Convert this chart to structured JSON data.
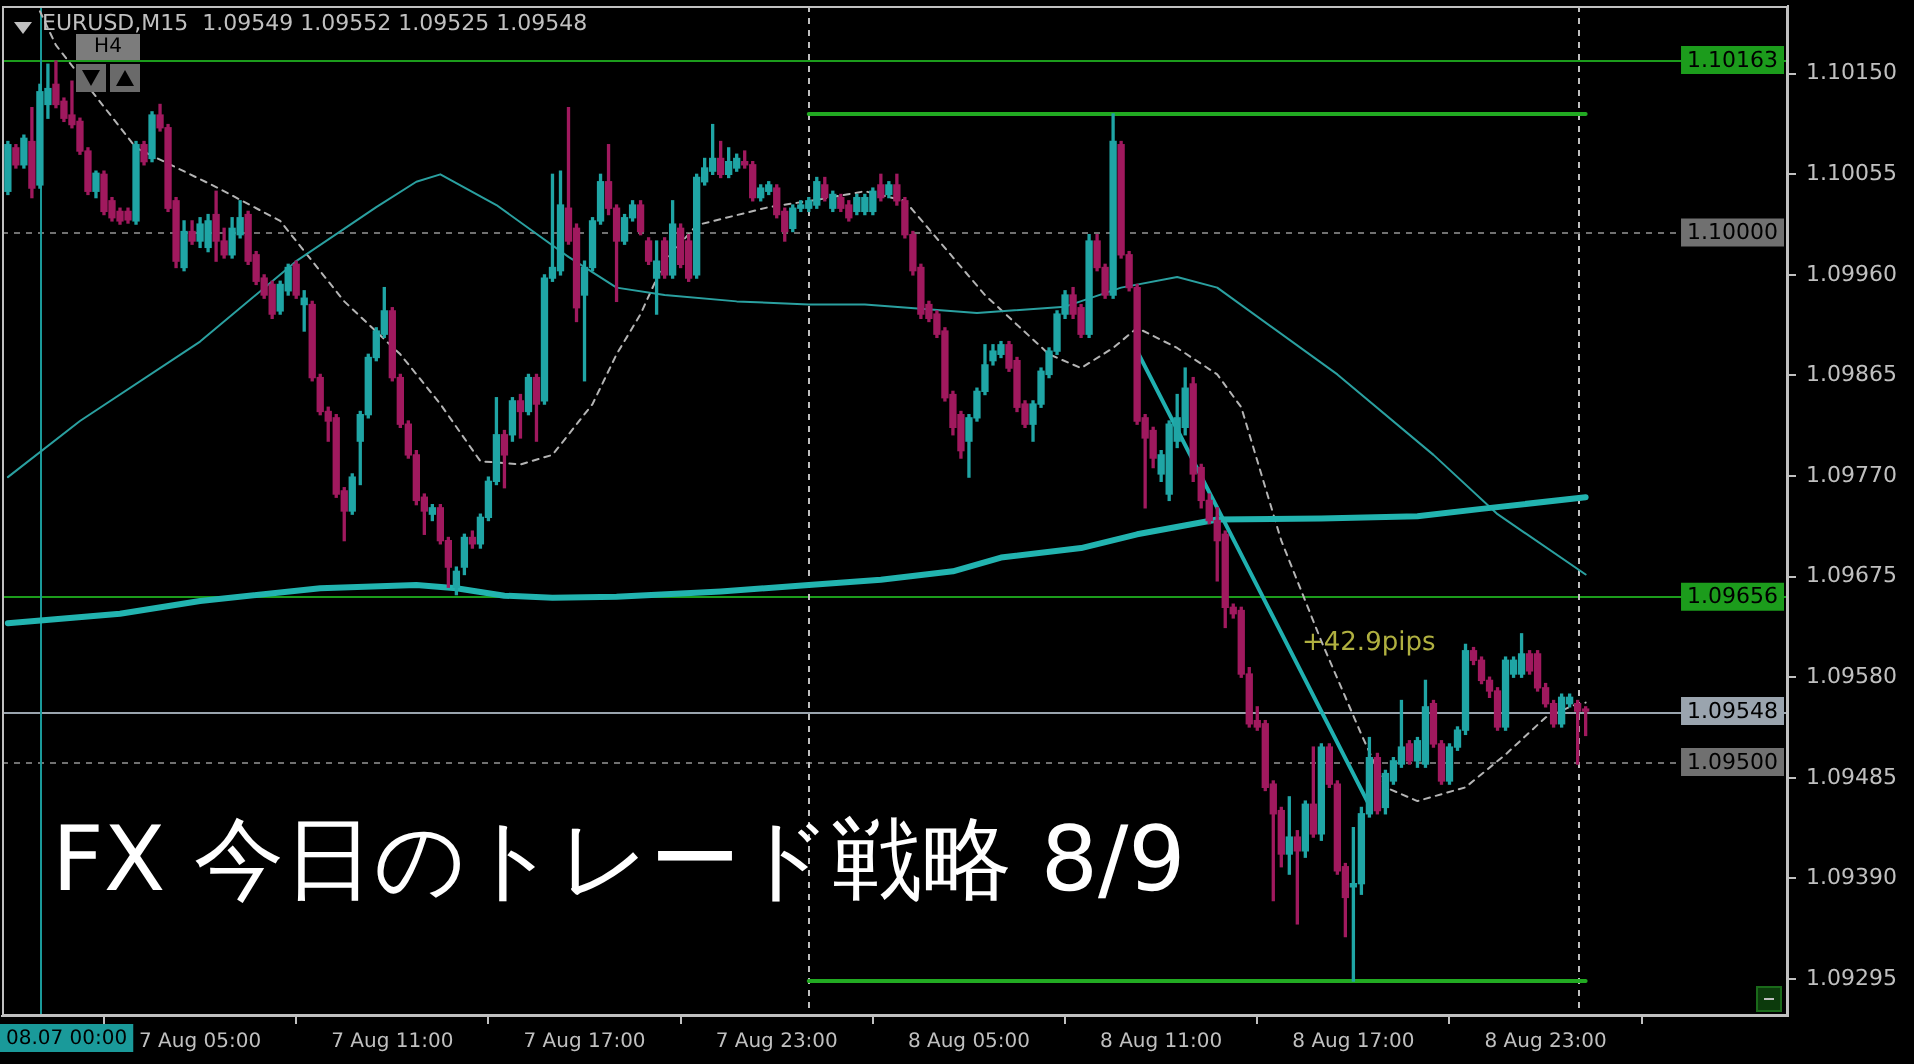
{
  "chart_data": {
    "type": "candlestick",
    "title": "FX 今日のトレード戦略 8/9",
    "subtitle": "EURUSD,M15  1.09549 1.09552 1.09525 1.09548",
    "x": [
      "--08-06T23:00",
      "--08-06T23:15",
      "--08-06T23:30",
      "--08-06T23:45",
      "--08-07T00:00",
      "--08-07T00:15",
      "--08-07T00:30",
      "--08-07T00:45",
      "--08-07T01:00",
      "--08-07T01:15",
      "--08-07T01:30",
      "--08-07T01:45",
      "--08-07T02:00",
      "--08-07T02:15",
      "--08-07T02:30",
      "--08-07T02:45",
      "--08-07T03:00",
      "--08-07T03:15",
      "--08-07T03:30",
      "--08-07T03:45",
      "--08-07T04:00",
      "--08-07T04:15",
      "--08-07T04:30",
      "--08-07T04:45",
      "--08-07T05:00",
      "--08-07T05:15",
      "--08-07T05:30",
      "--08-07T05:45",
      "--08-07T06:00",
      "--08-07T06:15",
      "--08-07T06:30",
      "--08-07T06:45",
      "--08-07T07:00",
      "--08-07T07:15",
      "--08-07T07:30",
      "--08-07T07:45",
      "--08-07T08:00",
      "--08-07T08:15",
      "--08-07T08:30",
      "--08-07T08:45",
      "--08-07T09:00",
      "--08-07T09:15",
      "--08-07T09:30",
      "--08-07T09:45",
      "--08-07T10:00",
      "--08-07T10:15",
      "--08-07T10:30",
      "--08-07T10:45",
      "--08-07T11:00",
      "--08-07T11:15",
      "--08-07T11:30",
      "--08-07T11:45",
      "--08-07T12:00",
      "--08-07T12:15",
      "--08-07T12:30",
      "--08-07T12:45",
      "--08-07T13:00",
      "--08-07T13:15",
      "--08-07T13:30",
      "--08-07T13:45",
      "--08-07T14:00",
      "--08-07T14:15",
      "--08-07T14:30",
      "--08-07T14:45",
      "--08-07T15:00",
      "--08-07T15:15",
      "--08-07T15:30",
      "--08-07T15:45",
      "--08-07T16:00",
      "--08-07T16:15",
      "--08-07T16:30",
      "--08-07T16:45",
      "--08-07T17:00",
      "--08-07T17:15",
      "--08-07T17:30",
      "--08-07T17:45",
      "--08-07T18:00",
      "--08-07T18:15",
      "--08-07T18:30",
      "--08-07T18:45",
      "--08-07T19:00",
      "--08-07T19:15",
      "--08-07T19:30",
      "--08-07T19:45",
      "--08-07T20:00",
      "--08-07T20:15",
      "--08-07T20:30",
      "--08-07T20:45",
      "--08-07T21:00",
      "--08-07T21:15",
      "--08-07T21:30",
      "--08-07T21:45",
      "--08-07T22:00",
      "--08-07T22:15",
      "--08-07T22:30",
      "--08-07T22:45",
      "--08-07T23:00",
      "--08-07T23:15",
      "--08-07T23:30",
      "--08-07T23:45",
      "--08-08T00:00",
      "--08-08T00:15",
      "--08-08T00:30",
      "--08-08T00:45",
      "--08-08T01:00",
      "--08-08T01:15",
      "--08-08T01:30",
      "--08-08T01:45",
      "--08-08T02:00",
      "--08-08T02:15",
      "--08-08T02:30",
      "--08-08T02:45",
      "--08-08T03:00",
      "--08-08T03:15",
      "--08-08T03:30",
      "--08-08T03:45",
      "--08-08T04:00",
      "--08-08T04:15",
      "--08-08T04:30",
      "--08-08T04:45",
      "--08-08T05:00",
      "--08-08T05:15",
      "--08-08T05:30",
      "--08-08T05:45",
      "--08-08T06:00",
      "--08-08T06:15",
      "--08-08T06:30",
      "--08-08T06:45",
      "--08-08T07:00",
      "--08-08T07:15",
      "--08-08T07:30",
      "--08-08T07:45",
      "--08-08T08:00",
      "--08-08T08:15",
      "--08-08T08:30",
      "--08-08T08:45",
      "--08-08T09:00",
      "--08-08T09:15",
      "--08-08T09:30",
      "--08-08T09:45",
      "--08-08T10:00",
      "--08-08T10:15",
      "--08-08T10:30",
      "--08-08T10:45",
      "--08-08T11:00",
      "--08-08T11:15",
      "--08-08T11:30",
      "--08-08T11:45",
      "--08-08T12:00",
      "--08-08T12:15",
      "--08-08T12:30",
      "--08-08T12:45",
      "--08-08T13:00",
      "--08-08T13:15",
      "--08-08T13:30",
      "--08-08T13:45",
      "--08-08T14:00",
      "--08-08T14:15",
      "--08-08T14:30",
      "--08-08T14:45",
      "--08-08T15:00",
      "--08-08T15:15",
      "--08-08T15:30",
      "--08-08T15:45",
      "--08-08T16:00",
      "--08-08T16:15",
      "--08-08T16:30",
      "--08-08T16:45",
      "--08-08T17:00",
      "--08-08T17:15",
      "--08-08T17:30",
      "--08-08T17:45",
      "--08-08T18:00",
      "--08-08T18:15",
      "--08-08T18:30",
      "--08-08T18:45",
      "--08-08T19:00",
      "--08-08T19:15",
      "--08-08T19:30",
      "--08-08T19:45",
      "--08-08T20:00",
      "--08-08T20:15",
      "--08-08T20:30",
      "--08-08T20:45",
      "--08-08T21:00",
      "--08-08T21:15",
      "--08-08T21:30",
      "--08-08T21:45",
      "--08-08T22:00",
      "--08-08T22:15",
      "--08-08T22:30",
      "--08-08T22:45",
      "--08-08T23:00",
      "--08-08T23:15",
      "--08-08T23:30",
      "--08-08T23:45",
      "--08-09T00:00",
      "--08-09T00:15"
    ],
    "ohlc": [
      [
        1.10039,
        1.10086,
        1.10036,
        1.10083
      ],
      [
        1.1008,
        1.10083,
        1.10061,
        1.10064
      ],
      [
        1.10064,
        1.10092,
        1.10061,
        1.10089
      ],
      [
        1.10086,
        1.10118,
        1.10033,
        1.10042
      ],
      [
        1.10045,
        1.1014,
        1.10042,
        1.10133
      ],
      [
        1.10121,
        1.10159,
        1.10108,
        1.10136
      ],
      [
        1.1014,
        1.10162,
        1.10118,
        1.10121
      ],
      [
        1.10124,
        1.10127,
        1.10105,
        1.10108
      ],
      [
        1.10111,
        1.10143,
        1.10099,
        1.10102
      ],
      [
        1.10105,
        1.10108,
        1.10074,
        1.10077
      ],
      [
        1.10077,
        1.1008,
        1.10036,
        1.10039
      ],
      [
        1.10039,
        1.10058,
        1.10033,
        1.10056
      ],
      [
        1.10055,
        1.10058,
        1.10017,
        1.1002
      ],
      [
        1.1003,
        1.10033,
        1.10011,
        1.10014
      ],
      [
        1.1002,
        1.10023,
        1.10008,
        1.10011
      ],
      [
        1.1002,
        1.10023,
        1.10009,
        1.10012
      ],
      [
        1.10011,
        1.10086,
        1.10008,
        1.10083
      ],
      [
        1.10083,
        1.10086,
        1.10064,
        1.10067
      ],
      [
        1.1007,
        1.10114,
        1.10067,
        1.10111
      ],
      [
        1.10111,
        1.10121,
        1.10096,
        1.10099
      ],
      [
        1.10099,
        1.10102,
        1.1002,
        1.10023
      ],
      [
        1.1003,
        1.10033,
        1.09967,
        1.09973
      ],
      [
        1.09967,
        1.10011,
        1.09964,
        1.10001
      ],
      [
        1.10001,
        1.10011,
        1.09989,
        1.09992
      ],
      [
        1.09992,
        1.10014,
        1.09986,
        1.10008
      ],
      [
        1.09986,
        1.10017,
        1.09982,
        1.10011
      ],
      [
        1.10017,
        1.10039,
        1.09973,
        1.09992
      ],
      [
        1.09992,
        1.10004,
        1.09976,
        1.09979
      ],
      [
        1.09979,
        1.10014,
        1.09976,
        1.10004
      ],
      [
        1.09998,
        1.1003,
        1.09995,
        1.10014
      ],
      [
        1.10017,
        1.1002,
        1.0997,
        1.09973
      ],
      [
        1.09979,
        1.09982,
        1.09951,
        1.09954
      ],
      [
        1.09957,
        1.0996,
        1.09938,
        1.09941
      ],
      [
        1.09951,
        1.09954,
        1.09919,
        1.09923
      ],
      [
        1.09926,
        1.09954,
        1.09923,
        1.09951
      ],
      [
        1.09945,
        1.0997,
        1.09941,
        1.09967
      ],
      [
        1.0997,
        1.09973,
        1.09938,
        1.09941
      ],
      [
        1.09932,
        1.09945,
        1.09907,
        1.09938
      ],
      [
        1.09932,
        1.09935,
        1.0986,
        1.09863
      ],
      [
        1.09863,
        1.09866,
        1.09828,
        1.09831
      ],
      [
        1.09831,
        1.09835,
        1.09803,
        1.09822
      ],
      [
        1.09825,
        1.09828,
        1.0975,
        1.09753
      ],
      [
        1.09756,
        1.09759,
        1.09709,
        1.09737
      ],
      [
        1.09737,
        1.09772,
        1.09734,
        1.09769
      ],
      [
        1.09803,
        1.09831,
        1.09762,
        1.09828
      ],
      [
        1.09828,
        1.09885,
        1.09825,
        1.09882
      ],
      [
        1.09882,
        1.0991,
        1.09879,
        1.09907
      ],
      [
        1.09904,
        1.09948,
        1.09901,
        1.09926
      ],
      [
        1.09926,
        1.09929,
        1.0986,
        1.09863
      ],
      [
        1.09863,
        1.09866,
        1.09816,
        1.09819
      ],
      [
        1.09819,
        1.09822,
        1.09787,
        1.0979
      ],
      [
        1.0979,
        1.09794,
        1.09743,
        1.09747
      ],
      [
        1.0975,
        1.09753,
        1.09715,
        1.09737
      ],
      [
        1.09734,
        1.09743,
        1.09728,
        1.0974
      ],
      [
        1.0974,
        1.09743,
        1.09706,
        1.09709
      ],
      [
        1.09709,
        1.09712,
        1.09665,
        1.09684
      ],
      [
        1.09665,
        1.09684,
        1.09658,
        1.0968
      ],
      [
        1.09684,
        1.09715,
        1.09677,
        1.09712
      ],
      [
        1.09712,
        1.09718,
        1.09702,
        1.09706
      ],
      [
        1.09706,
        1.09734,
        1.09702,
        1.09731
      ],
      [
        1.09731,
        1.09769,
        1.09728,
        1.09765
      ],
      [
        1.09765,
        1.09844,
        1.09762,
        1.09809
      ],
      [
        1.09809,
        1.09813,
        1.09759,
        1.0979
      ],
      [
        1.09809,
        1.09844,
        1.09803,
        1.09841
      ],
      [
        1.09841,
        1.09847,
        1.09806,
        1.09831
      ],
      [
        1.09831,
        1.09866,
        1.09828,
        1.09863
      ],
      [
        1.09863,
        1.09866,
        1.09803,
        1.09838
      ],
      [
        1.09841,
        1.0996,
        1.09838,
        1.09957
      ],
      [
        1.09957,
        1.10055,
        1.09954,
        1.09967
      ],
      [
        1.09964,
        1.10058,
        1.0996,
        1.10026
      ],
      [
        1.10023,
        1.10118,
        1.09989,
        1.09992
      ],
      [
        1.10004,
        1.10008,
        1.09916,
        1.09929
      ],
      [
        1.09941,
        1.09973,
        1.0986,
        1.09967
      ],
      [
        1.09967,
        1.10014,
        1.09964,
        1.10011
      ],
      [
        1.10011,
        1.10055,
        1.10008,
        1.10048
      ],
      [
        1.10048,
        1.10083,
        1.10017,
        1.10023
      ],
      [
        1.10023,
        1.10026,
        1.09935,
        1.09992
      ],
      [
        1.09992,
        1.10017,
        1.09989,
        1.10014
      ],
      [
        1.10014,
        1.1003,
        1.10011,
        1.10026
      ],
      [
        1.10026,
        1.1003,
        1.09998,
        1.10001
      ],
      [
        1.09992,
        1.09995,
        1.0997,
        1.09973
      ],
      [
        1.09957,
        1.09992,
        1.09923,
        1.09973
      ],
      [
        1.09992,
        1.09995,
        1.09957,
        1.0996
      ],
      [
        1.0996,
        1.1003,
        1.09957,
        1.10008
      ],
      [
        1.10004,
        1.10008,
        1.09967,
        1.0997
      ],
      [
        1.09992,
        1.09998,
        1.09954,
        1.09957
      ],
      [
        1.0996,
        1.10055,
        1.09957,
        1.10052
      ],
      [
        1.10048,
        1.1007,
        1.10045,
        1.10061
      ],
      [
        1.10058,
        1.10102,
        1.10055,
        1.1007
      ],
      [
        1.1007,
        1.10086,
        1.10052,
        1.10055
      ],
      [
        1.10055,
        1.1008,
        1.10052,
        1.10067
      ],
      [
        1.10061,
        1.10074,
        1.10058,
        1.1007
      ],
      [
        1.10067,
        1.10077,
        1.10061,
        1.10064
      ],
      [
        1.10064,
        1.10067,
        1.1003,
        1.10033
      ],
      [
        1.10033,
        1.10045,
        1.1003,
        1.10042
      ],
      [
        1.10039,
        1.10048,
        1.10036,
        1.10045
      ],
      [
        1.10042,
        1.10045,
        1.10014,
        1.10017
      ],
      [
        1.1002,
        1.10023,
        1.09992,
        1.10001
      ],
      [
        1.10004,
        1.10026,
        1.10001,
        1.10023
      ],
      [
        1.10023,
        1.1003,
        1.1002,
        1.10026
      ],
      [
        1.10023,
        1.10033,
        1.1002,
        1.1003
      ],
      [
        1.10026,
        1.10052,
        1.10023,
        1.10048
      ],
      [
        1.10045,
        1.10052,
        1.1003,
        1.10033
      ],
      [
        1.10023,
        1.10039,
        1.1002,
        1.10036
      ],
      [
        1.10033,
        1.10036,
        1.1002,
        1.10023
      ],
      [
        1.10026,
        1.1003,
        1.10011,
        1.10014
      ],
      [
        1.1002,
        1.10036,
        1.10017,
        1.10033
      ],
      [
        1.1002,
        1.10036,
        1.10017,
        1.10033
      ],
      [
        1.1002,
        1.10042,
        1.10017,
        1.10039
      ],
      [
        1.10045,
        1.10055,
        1.1003,
        1.10033
      ],
      [
        1.10036,
        1.10048,
        1.10033,
        1.10045
      ],
      [
        1.10045,
        1.10055,
        1.10026,
        1.1003
      ],
      [
        1.1003,
        1.10033,
        1.09995,
        1.09998
      ],
      [
        1.09998,
        1.10001,
        1.0996,
        1.09964
      ],
      [
        1.09967,
        1.0997,
        1.09919,
        1.09923
      ],
      [
        1.09932,
        1.09935,
        1.09916,
        1.09919
      ],
      [
        1.09923,
        1.09926,
        1.09901,
        1.09904
      ],
      [
        1.09907,
        1.0991,
        1.09841,
        1.09844
      ],
      [
        1.09847,
        1.0985,
        1.09809,
        1.09816
      ],
      [
        1.09828,
        1.09831,
        1.09787,
        1.09794
      ],
      [
        1.09803,
        1.09828,
        1.09769,
        1.09825
      ],
      [
        1.09825,
        1.09853,
        1.09822,
        1.0985
      ],
      [
        1.0985,
        1.09894,
        1.09847,
        1.09875
      ],
      [
        1.09879,
        1.09894,
        1.09875,
        1.09888
      ],
      [
        1.09885,
        1.09897,
        1.09882,
        1.09894
      ],
      [
        1.09894,
        1.09897,
        1.09869,
        1.09872
      ],
      [
        1.09879,
        1.09882,
        1.09831,
        1.09835
      ],
      [
        1.09838,
        1.09841,
        1.09816,
        1.09819
      ],
      [
        1.09819,
        1.09841,
        1.09803,
        1.09838
      ],
      [
        1.09838,
        1.09872,
        1.09835,
        1.09869
      ],
      [
        1.09866,
        1.09891,
        1.09863,
        1.09888
      ],
      [
        1.09888,
        1.09926,
        1.09885,
        1.09923
      ],
      [
        1.09923,
        1.09945,
        1.09919,
        1.09941
      ],
      [
        1.09941,
        1.09948,
        1.09919,
        1.09923
      ],
      [
        1.09929,
        1.09932,
        1.09901,
        1.09904
      ],
      [
        1.09904,
        1.09998,
        1.09901,
        1.09992
      ],
      [
        1.09992,
        1.09998,
        1.09964,
        1.09967
      ],
      [
        1.09967,
        1.0997,
        1.09938,
        1.09941
      ],
      [
        1.09941,
        1.10112,
        1.09938,
        1.10086
      ],
      [
        1.10083,
        1.10086,
        1.09976,
        1.09979
      ],
      [
        1.09979,
        1.09982,
        1.09945,
        1.09948
      ],
      [
        1.09948,
        1.09951,
        1.09819,
        1.09822
      ],
      [
        1.09825,
        1.09828,
        1.0974,
        1.09806
      ],
      [
        1.09813,
        1.09816,
        1.09778,
        1.09787
      ],
      [
        1.09772,
        1.09794,
        1.09765,
        1.0979
      ],
      [
        1.09753,
        1.09822,
        1.09747,
        1.09819
      ],
      [
        1.09803,
        1.09847,
        1.09797,
        1.09825
      ],
      [
        1.09816,
        1.09872,
        1.09809,
        1.09853
      ],
      [
        1.09857,
        1.09863,
        1.09765,
        1.09772
      ],
      [
        1.09778,
        1.09781,
        1.0974,
        1.09747
      ],
      [
        1.09747,
        1.09753,
        1.09725,
        1.09728
      ],
      [
        1.09728,
        1.0974,
        1.09671,
        1.09709
      ],
      [
        1.09715,
        1.09718,
        1.09627,
        1.09646
      ],
      [
        1.09646,
        1.09649,
        1.09636,
        1.0964
      ],
      [
        1.09643,
        1.09646,
        1.0958,
        1.09583
      ],
      [
        1.09583,
        1.09589,
        1.09533,
        1.09536
      ],
      [
        1.09539,
        1.09552,
        1.0953,
        1.09533
      ],
      [
        1.09536,
        1.09539,
        1.09473,
        1.09476
      ],
      [
        1.09479,
        1.09482,
        1.09369,
        1.09451
      ],
      [
        1.09454,
        1.09457,
        1.09401,
        1.09413
      ],
      [
        1.09413,
        1.09467,
        1.09394,
        1.09429
      ],
      [
        1.09429,
        1.09435,
        1.09347,
        1.09416
      ],
      [
        1.09416,
        1.09463,
        1.0941,
        1.0946
      ],
      [
        1.0946,
        1.09514,
        1.09429,
        1.09432
      ],
      [
        1.09432,
        1.09517,
        1.09426,
        1.09514
      ],
      [
        1.09514,
        1.09517,
        1.09476,
        1.09479
      ],
      [
        1.09479,
        1.09482,
        1.09394,
        1.09397
      ],
      [
        1.09401,
        1.09404,
        1.09335,
        1.09372
      ],
      [
        1.09382,
        1.09438,
        1.09293,
        1.09385
      ],
      [
        1.09385,
        1.09457,
        1.09375,
        1.09451
      ],
      [
        1.09451,
        1.09523,
        1.09448,
        1.09504
      ],
      [
        1.09504,
        1.09508,
        1.09451,
        1.09454
      ],
      [
        1.09457,
        1.09492,
        1.09451,
        1.09489
      ],
      [
        1.09482,
        1.09504,
        1.09479,
        1.09501
      ],
      [
        1.09498,
        1.09558,
        1.09495,
        1.09514
      ],
      [
        1.09517,
        1.0952,
        1.09498,
        1.09501
      ],
      [
        1.09501,
        1.09523,
        1.09495,
        1.0952
      ],
      [
        1.09498,
        1.09577,
        1.09495,
        1.09552
      ],
      [
        1.09555,
        1.09558,
        1.09514,
        1.09517
      ],
      [
        1.09517,
        1.0952,
        1.09479,
        1.09482
      ],
      [
        1.09482,
        1.09517,
        1.09479,
        1.09514
      ],
      [
        1.09514,
        1.09533,
        1.09511,
        1.0953
      ],
      [
        1.0953,
        1.09611,
        1.09526,
        1.09605
      ],
      [
        1.09605,
        1.09608,
        1.09592,
        1.09596
      ],
      [
        1.09596,
        1.09599,
        1.09574,
        1.09577
      ],
      [
        1.09577,
        1.0958,
        1.09561,
        1.09567
      ],
      [
        1.09567,
        1.0957,
        1.0953,
        1.09533
      ],
      [
        1.09533,
        1.09599,
        1.0953,
        1.09596
      ],
      [
        1.09583,
        1.09599,
        1.0958,
        1.09596
      ],
      [
        1.09583,
        1.09621,
        1.0958,
        1.09602
      ],
      [
        1.09602,
        1.09605,
        1.09583,
        1.09586
      ],
      [
        1.09602,
        1.09605,
        1.09567,
        1.0957
      ],
      [
        1.0957,
        1.09574,
        1.09552,
        1.09555
      ],
      [
        1.09555,
        1.09558,
        1.09533,
        1.09536
      ],
      [
        1.09536,
        1.09564,
        1.09533,
        1.09561
      ],
      [
        1.09555,
        1.09564,
        1.09552,
        1.09561
      ],
      [
        1.09555,
        1.09558,
        1.09498,
        1.09548
      ],
      [
        1.09549,
        1.09552,
        1.09525,
        1.09548
      ]
    ],
    "colors": [
      "#1fa5a5",
      "#a0195e",
      "#1fa5a5",
      "#a0195e",
      "#1fa5a5",
      "#1fa5a5",
      "#a0195e",
      "#a0195e",
      "#a0195e",
      "#a0195e",
      "#a0195e",
      "#1fa5a5",
      "#a0195e",
      "#a0195e",
      "#a0195e",
      "#a0195e",
      "#1fa5a5",
      "#a0195e",
      "#1fa5a5",
      "#a0195e",
      "#a0195e",
      "#a0195e",
      "#1fa5a5",
      "#a0195e",
      "#1fa5a5",
      "#1fa5a5",
      "#a0195e",
      "#a0195e",
      "#1fa5a5",
      "#1fa5a5",
      "#a0195e",
      "#a0195e",
      "#a0195e",
      "#a0195e",
      "#1fa5a5",
      "#1fa5a5",
      "#a0195e",
      "#1fa5a5",
      "#a0195e",
      "#a0195e",
      "#a0195e",
      "#a0195e",
      "#a0195e",
      "#1fa5a5",
      "#1fa5a5",
      "#1fa5a5",
      "#1fa5a5",
      "#1fa5a5",
      "#a0195e",
      "#a0195e",
      "#a0195e",
      "#a0195e",
      "#a0195e",
      "#1fa5a5",
      "#a0195e",
      "#a0195e",
      "#1fa5a5",
      "#1fa5a5",
      "#a0195e",
      "#1fa5a5",
      "#1fa5a5",
      "#1fa5a5",
      "#a0195e",
      "#1fa5a5",
      "#a0195e",
      "#1fa5a5",
      "#a0195e",
      "#1fa5a5",
      "#1fa5a5",
      "#1fa5a5",
      "#a0195e",
      "#a0195e",
      "#1fa5a5",
      "#1fa5a5",
      "#1fa5a5",
      "#a0195e",
      "#a0195e",
      "#1fa5a5",
      "#1fa5a5",
      "#a0195e",
      "#a0195e",
      "#1fa5a5",
      "#a0195e",
      "#1fa5a5",
      "#a0195e",
      "#a0195e",
      "#1fa5a5",
      "#1fa5a5",
      "#1fa5a5",
      "#a0195e",
      "#1fa5a5",
      "#1fa5a5",
      "#a0195e",
      "#a0195e",
      "#1fa5a5",
      "#1fa5a5",
      "#a0195e",
      "#a0195e",
      "#1fa5a5",
      "#1fa5a5",
      "#1fa5a5",
      "#1fa5a5",
      "#a0195e",
      "#1fa5a5",
      "#a0195e",
      "#a0195e",
      "#1fa5a5",
      "#1fa5a5",
      "#1fa5a5",
      "#a0195e",
      "#1fa5a5",
      "#a0195e",
      "#a0195e",
      "#a0195e",
      "#a0195e",
      "#a0195e",
      "#a0195e",
      "#a0195e",
      "#a0195e",
      "#a0195e",
      "#1fa5a5",
      "#1fa5a5",
      "#1fa5a5",
      "#1fa5a5",
      "#1fa5a5",
      "#a0195e",
      "#a0195e",
      "#a0195e",
      "#1fa5a5",
      "#1fa5a5",
      "#1fa5a5",
      "#1fa5a5",
      "#1fa5a5",
      "#a0195e",
      "#a0195e",
      "#1fa5a5",
      "#a0195e",
      "#a0195e",
      "#1fa5a5",
      "#a0195e",
      "#a0195e",
      "#a0195e",
      "#a0195e",
      "#a0195e",
      "#1fa5a5",
      "#1fa5a5",
      "#1fa5a5",
      "#1fa5a5",
      "#a0195e",
      "#a0195e",
      "#a0195e",
      "#a0195e",
      "#a0195e",
      "#a0195e",
      "#a0195e",
      "#a0195e",
      "#a0195e",
      "#a0195e",
      "#a0195e",
      "#a0195e",
      "#1fa5a5",
      "#a0195e",
      "#1fa5a5",
      "#a0195e",
      "#1fa5a5",
      "#a0195e",
      "#a0195e",
      "#a0195e",
      "#1fa5a5",
      "#1fa5a5",
      "#1fa5a5",
      "#a0195e",
      "#1fa5a5",
      "#1fa5a5",
      "#1fa5a5",
      "#a0195e",
      "#1fa5a5",
      "#1fa5a5",
      "#a0195e",
      "#a0195e",
      "#1fa5a5",
      "#1fa5a5",
      "#1fa5a5",
      "#a0195e",
      "#a0195e",
      "#a0195e",
      "#a0195e",
      "#1fa5a5",
      "#1fa5a5",
      "#1fa5a5",
      "#a0195e",
      "#a0195e",
      "#a0195e",
      "#a0195e",
      "#1fa5a5",
      "#1fa5a5",
      "#a0195e",
      "#a0195e"
    ],
    "series": [
      {
        "type": "line",
        "color": "#22b4b0",
        "x": [
          "--08-06T23:00",
          "--08-07T02:30",
          "--08-07T05:00",
          "--08-07T08:45",
          "--08-07T11:45",
          "--08-07T13:00",
          "--08-07T14:30",
          "--08-07T16:00",
          "--08-07T18:00",
          "--08-07T21:15",
          "--08-08T00:00",
          "--08-08T02:15",
          "--08-08T04:30",
          "--08-08T06:00",
          "--08-08T08:30",
          "--08-08T10:15",
          "--08-08T12:45",
          "--08-08T16:00",
          "--08-08T19:00",
          "--08-08T21:00",
          "--08-09T00:15"
        ],
        "values": [
          1.09631,
          1.0964,
          1.09652,
          1.09664,
          1.09667,
          1.09664,
          1.09657,
          1.09655,
          1.09656,
          1.09661,
          1.09667,
          1.09672,
          1.0968,
          1.09693,
          1.09702,
          1.09715,
          1.09729,
          1.0973,
          1.09732,
          1.09739,
          1.0975
        ]
      },
      {
        "type": "line",
        "color": "#2aa0a0",
        "x": [
          "--08-06T23:00",
          "--08-07T01:15",
          "--08-07T05:00",
          "--08-07T08:00",
          "--08-07T10:30",
          "--08-07T11:45",
          "--08-07T12:30",
          "--08-07T14:15",
          "--08-07T16:30",
          "--08-07T18:00",
          "--08-07T19:30",
          "--08-07T21:45",
          "--08-08T00:00",
          "--08-08T01:45",
          "--08-08T05:15",
          "--08-08T08:00",
          "--08-08T09:45",
          "--08-08T11:30",
          "--08-08T12:45",
          "--08-08T16:30",
          "--08-08T19:30",
          "--08-08T21:30",
          "--08-09T00:15"
        ],
        "values": [
          1.09769,
          1.09822,
          1.09897,
          1.09973,
          1.10024,
          1.10048,
          1.10055,
          1.10026,
          1.09977,
          1.09948,
          1.09941,
          1.09935,
          1.09932,
          1.09932,
          1.09924,
          1.0993,
          1.09948,
          1.09958,
          1.09948,
          1.09866,
          1.0979,
          1.09734,
          1.09677
        ]
      },
      {
        "type": "line",
        "color": "#b4b4b4",
        "line_style": "dashed",
        "x": [
          "--08-07T00:00",
          "--08-07T00:30",
          "--08-07T03:00",
          "--08-07T05:30",
          "--08-07T07:30",
          "--08-07T09:30",
          "--08-07T11:15",
          "--08-07T12:30",
          "--08-07T13:45",
          "--08-07T15:00",
          "--08-07T16:00",
          "--08-07T17:15",
          "--08-07T18:00",
          "--08-07T18:45",
          "--08-07T19:30",
          "--08-07T20:30",
          "--08-07T22:45",
          "--08-08T00:15",
          "--08-08T01:45",
          "--08-08T03:00",
          "--08-08T05:30",
          "--08-08T07:30",
          "--08-08T08:30",
          "--08-08T09:30",
          "--08-08T10:15",
          "--08-08T11:30",
          "--08-08T12:45",
          "--08-08T13:30",
          "--08-08T14:45",
          "--08-08T16:00",
          "--08-08T17:15",
          "--08-08T18:00",
          "--08-08T19:00",
          "--08-08T20:30",
          "--08-08T21:45",
          "--08-08T23:00",
          "--08-09T00:00",
          "--08-09T00:15"
        ],
        "values": [
          1.10209,
          1.10177,
          1.1008,
          1.10043,
          1.10011,
          1.09935,
          1.09885,
          1.09838,
          1.09784,
          1.09781,
          1.0979,
          1.09838,
          1.09885,
          1.09923,
          1.09973,
          1.10007,
          1.10024,
          1.10031,
          1.10039,
          1.1003,
          1.09941,
          1.09885,
          1.09872,
          1.09891,
          1.0991,
          1.09891,
          1.09866,
          1.09835,
          1.09709,
          1.09614,
          1.09526,
          1.09476,
          1.09463,
          1.09476,
          1.09507,
          1.09542,
          1.09555,
          1.09556
        ]
      },
      {
        "type": "line",
        "color": "#20b0b0",
        "x": [
          "--08-08T10:15",
          "--08-08T17:30"
        ],
        "values": [
          1.09888,
          1.09459
        ]
      },
      {
        "type": "line",
        "color": "#22aa22",
        "x": [
          "--08-08T00:00",
          "--08-09T00:15"
        ],
        "values": [
          1.10112,
          1.10112
        ]
      },
      {
        "type": "line",
        "color": "#22aa22",
        "x": [
          "--08-08T00:00",
          "--08-09T00:15"
        ],
        "values": [
          1.09293,
          1.09293
        ]
      }
    ],
    "marker": "none",
    "xlim": [
      "--08-06T22:49",
      "--08-09T06:34"
    ],
    "xticks": [
      {
        "value": "--08-07T05:00",
        "label": "7 Aug 05:00"
      },
      {
        "value": "--08-07T11:00",
        "label": "7 Aug 11:00"
      },
      {
        "value": "--08-07T17:00",
        "label": "7 Aug 17:00"
      },
      {
        "value": "--08-07T23:00",
        "label": "7 Aug 23:00"
      },
      {
        "value": "--08-08T05:00",
        "label": "8 Aug 05:00"
      },
      {
        "value": "--08-08T11:00",
        "label": "8 Aug 11:00"
      },
      {
        "value": "--08-08T17:00",
        "label": "8 Aug 17:00"
      },
      {
        "value": "--08-08T23:00",
        "label": "8 Aug 23:00"
      }
    ],
    "ylim": [
      1.0926,
      1.10214
    ],
    "yticks": [
      {
        "value": 1.1015,
        "label": "1.10150"
      },
      1.10055,
      {
        "value": 1.0996,
        "label": "1.09960"
      },
      1.09865,
      {
        "value": 1.0977,
        "label": "1.09770"
      },
      1.09675,
      {
        "value": 1.0958,
        "label": "1.09580"
      },
      1.09485,
      {
        "value": 1.0939,
        "label": "1.09390"
      },
      1.09295
    ],
    "ref_lines": [
      {
        "axis": "y",
        "value": 1.10163,
        "label": "1.10163",
        "color": "#1c9c1c"
      },
      {
        "axis": "y",
        "value": 1.1,
        "label": "1.10000",
        "color": "#707070",
        "line_style": "dashed"
      },
      {
        "axis": "y",
        "value": 1.09656,
        "label": "1.09656",
        "color": "#1c9c1c"
      },
      {
        "axis": "y",
        "value": 1.09548,
        "label": "1.09548",
        "color": "#9aa4ae"
      },
      {
        "axis": "y",
        "value": 1.095,
        "label": "1.09500",
        "color": "#707070",
        "line_style": "dashed"
      },
      {
        "axis": "x",
        "value": "--08-07T00:00",
        "label": "08.07 00:00",
        "color": "#1a9a9a"
      },
      {
        "axis": "x",
        "value": "--08-08T00:00",
        "color": "#c0c0c0",
        "line_style": "dashed"
      },
      {
        "axis": "x",
        "value": "--08-09T00:00",
        "color": "#c0c0c0",
        "line_style": "dashed"
      }
    ],
    "annotations": [
      "H4",
      "+42.9pips"
    ]
  }
}
